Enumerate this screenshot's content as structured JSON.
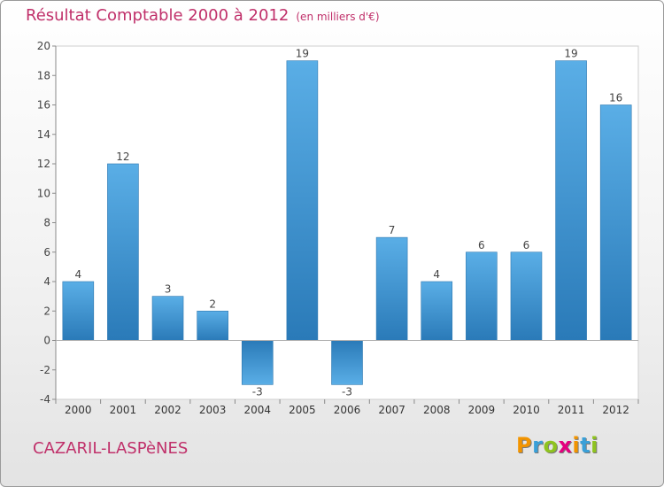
{
  "title": "Résultat Comptable 2000 à 2012",
  "subtitle": "(en milliers d'€)",
  "commune": "CAZARIL-LASPèNES",
  "brand": {
    "letters": [
      "P",
      "r",
      "o",
      "x",
      "i",
      "t",
      "i"
    ],
    "colors": [
      "#f29400",
      "#3aa0d8",
      "#8fc31f",
      "#e4007f",
      "#f29400",
      "#3aa0d8",
      "#8fc31f"
    ]
  },
  "colors": {
    "bar_light": "#5aaee6",
    "bar_dark": "#2a7ab8",
    "title": "#c0306a"
  },
  "chart_data": {
    "type": "bar",
    "categories": [
      "2000",
      "2001",
      "2002",
      "2003",
      "2004",
      "2005",
      "2006",
      "2007",
      "2008",
      "2009",
      "2010",
      "2011",
      "2012"
    ],
    "values": [
      4,
      12,
      3,
      2,
      -3,
      19,
      -3,
      7,
      4,
      6,
      6,
      19,
      16
    ],
    "ylim": [
      -4,
      20
    ],
    "yticks": [
      -4,
      -2,
      0,
      2,
      4,
      6,
      8,
      10,
      12,
      14,
      16,
      18,
      20
    ],
    "grid": false,
    "legend": "none"
  }
}
